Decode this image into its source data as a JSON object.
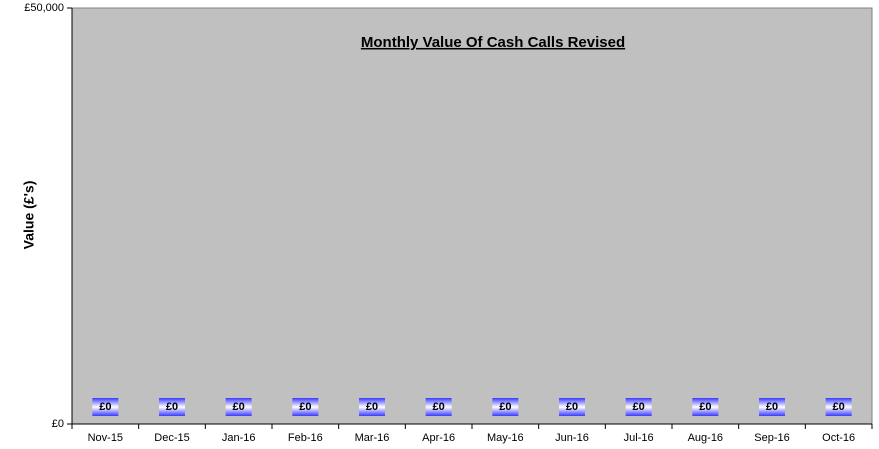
{
  "chart_data": {
    "type": "bar",
    "title": "Monthly Value Of Cash Calls Revised",
    "y_label": "Value (£'s)",
    "categories": [
      "Nov-15",
      "Dec-15",
      "Jan-16",
      "Feb-16",
      "Mar-16",
      "Apr-16",
      "May-16",
      "Jun-16",
      "Jul-16",
      "Aug-16",
      "Sep-16",
      "Oct-16"
    ],
    "values": [
      0,
      0,
      0,
      0,
      0,
      0,
      0,
      0,
      0,
      0,
      0,
      0
    ],
    "value_labels": [
      "£0",
      "£0",
      "£0",
      "£0",
      "£0",
      "£0",
      "£0",
      "£0",
      "£0",
      "£0",
      "£0",
      "£0"
    ],
    "color": "#3333ff",
    "ylim": [
      0,
      50000
    ],
    "yticks": [
      {
        "value": 0,
        "label": "£0"
      },
      {
        "value": 50000,
        "label": "£50,000"
      }
    ],
    "plot_background": "#c0c0c0"
  }
}
